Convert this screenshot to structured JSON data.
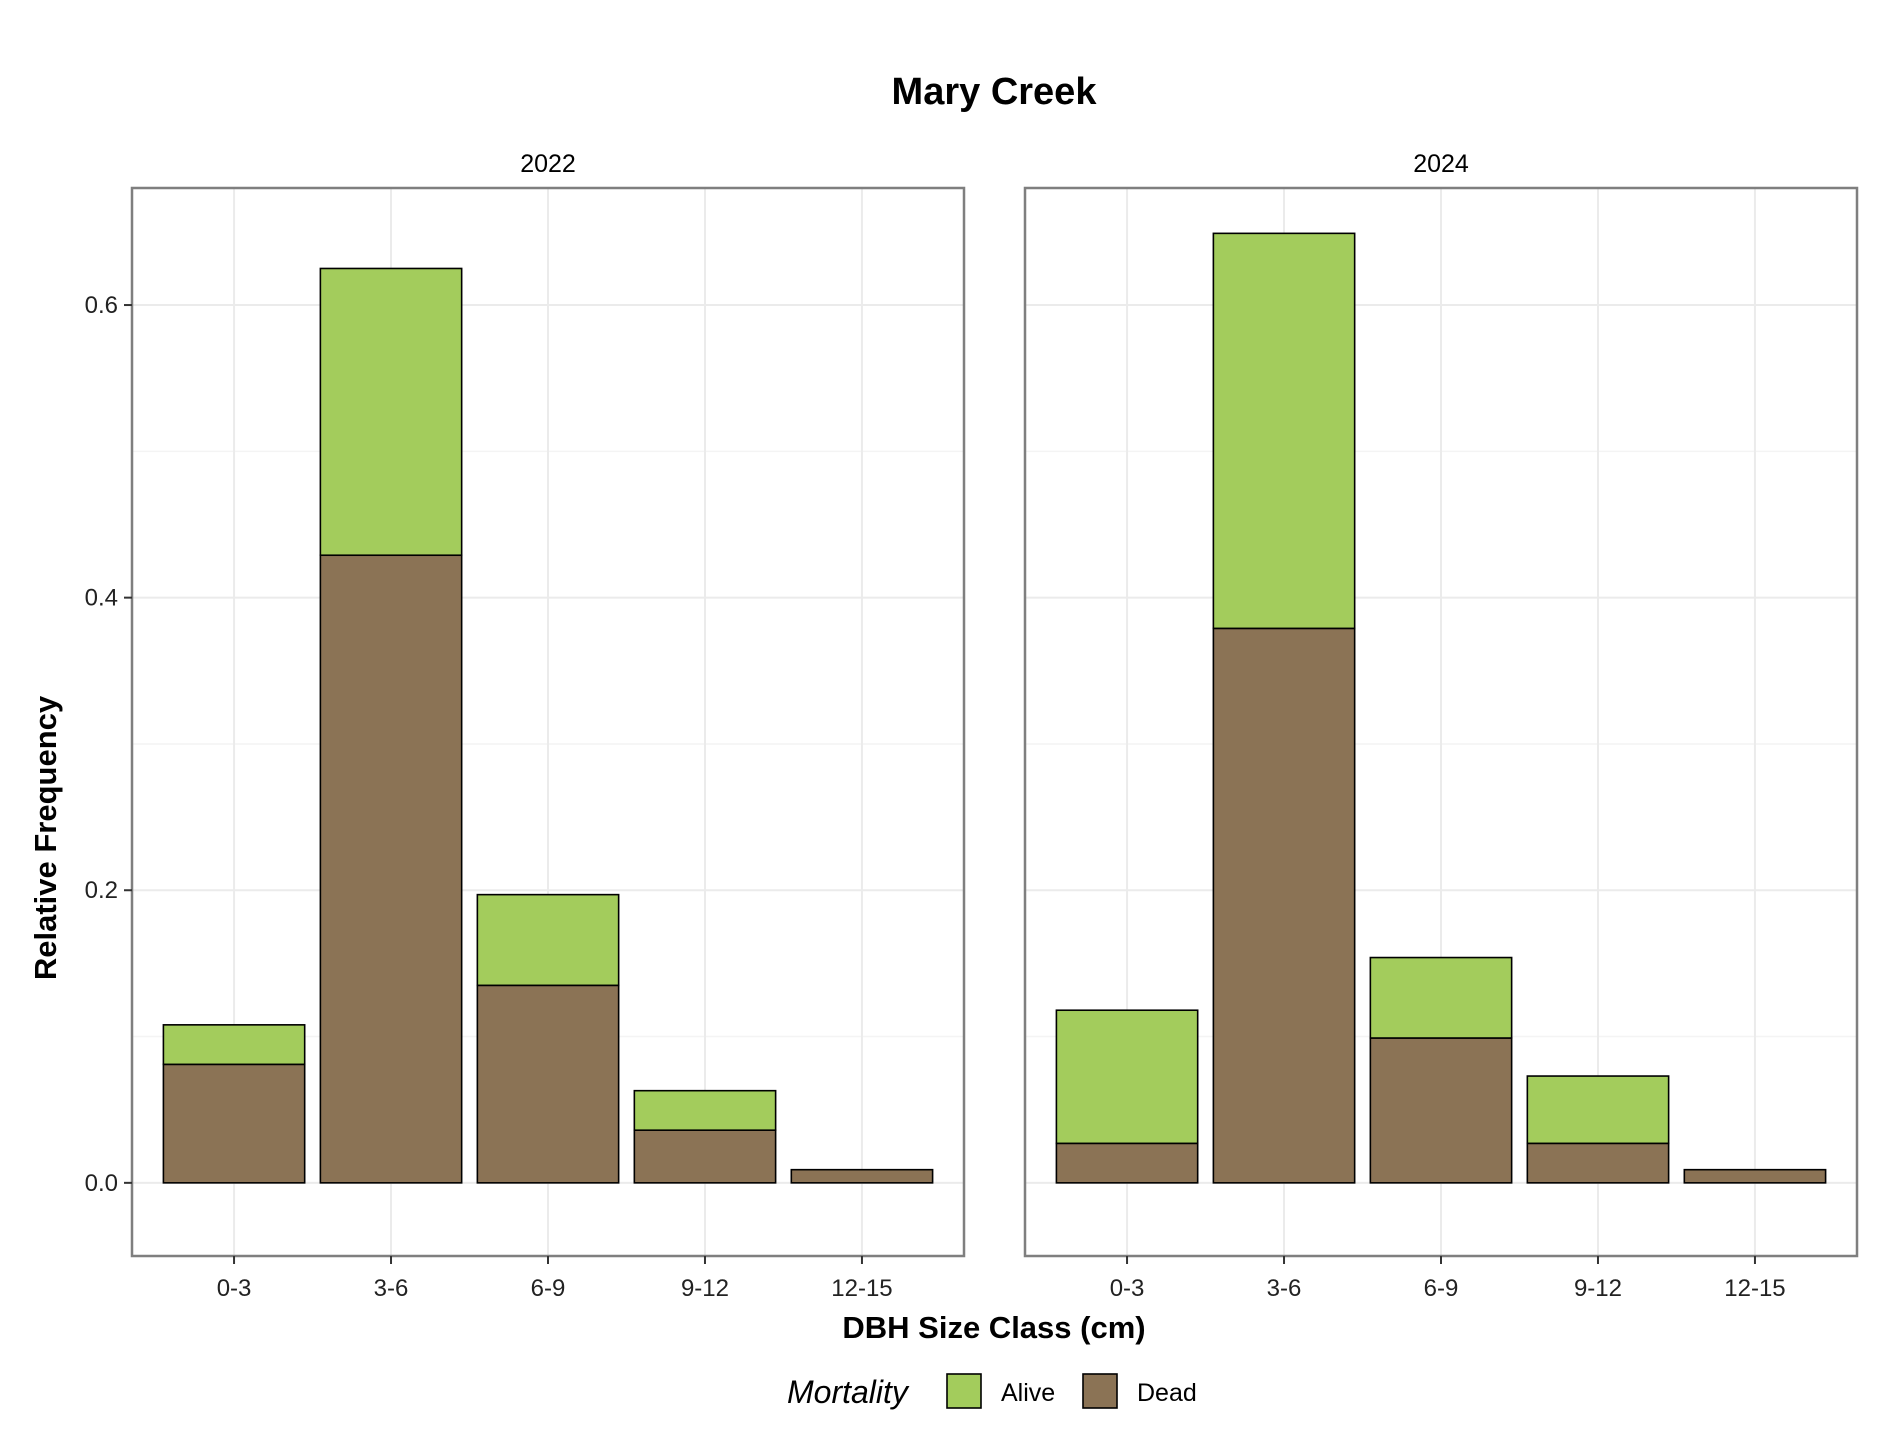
{
  "chart_data": {
    "type": "bar",
    "stacked": true,
    "title": "Mary Creek",
    "xlabel": "DBH Size Class (cm)",
    "ylabel": "Relative Frequency",
    "ylim": [
      -0.05,
      0.68
    ],
    "yticks": [
      0.0,
      0.2,
      0.4,
      0.6
    ],
    "ytick_labels": [
      "0.0",
      "0.2",
      "0.4",
      "0.6"
    ],
    "grid": true,
    "categories": [
      "0-3",
      "3-6",
      "6-9",
      "9-12",
      "12-15"
    ],
    "legend": {
      "title": "Mortality",
      "placement": "bottom",
      "entries": [
        {
          "name": "Alive",
          "color": "#a3cc5c"
        },
        {
          "name": "Dead",
          "color": "#8b7355"
        }
      ]
    },
    "panels": [
      {
        "label": "2022",
        "series": [
          {
            "name": "Dead",
            "values": [
              0.081,
              0.429,
              0.135,
              0.036,
              0.009
            ]
          },
          {
            "name": "Alive",
            "values": [
              0.027,
              0.196,
              0.062,
              0.027,
              0.0
            ]
          }
        ]
      },
      {
        "label": "2024",
        "series": [
          {
            "name": "Dead",
            "values": [
              0.027,
              0.379,
              0.099,
              0.027,
              0.009
            ]
          },
          {
            "name": "Alive",
            "values": [
              0.091,
              0.27,
              0.055,
              0.046,
              0.0
            ]
          }
        ]
      }
    ]
  }
}
